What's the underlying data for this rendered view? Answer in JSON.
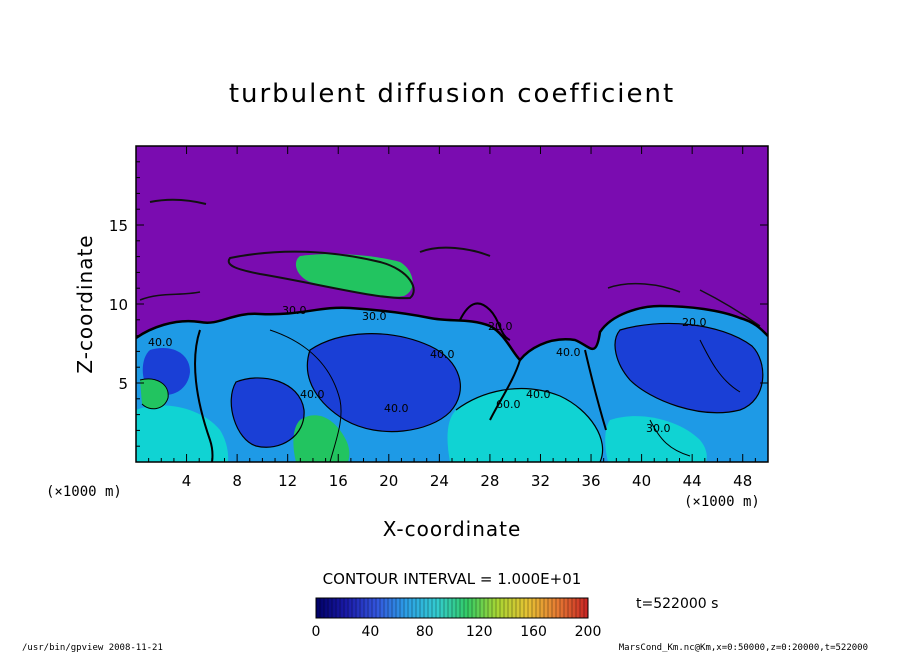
{
  "chart_data": {
    "type": "heatmap",
    "title": "turbulent diffusion coefficient",
    "xlabel": "X-coordinate",
    "ylabel": "Z-coordinate",
    "x_unit": "(×1000 m)",
    "y_unit": "(×1000 m)",
    "x_ticks": [
      "4",
      "8",
      "12",
      "16",
      "20",
      "24",
      "28",
      "32",
      "36",
      "40",
      "44",
      "48"
    ],
    "y_ticks": [
      "5",
      "10",
      "15"
    ],
    "xlim": [
      0,
      50
    ],
    "ylim": [
      0,
      20
    ],
    "contour_interval": "CONTOUR INTERVAL = 1.000E+01",
    "time_label": "t=522000 s",
    "colorbar": {
      "min": 0,
      "max": 200,
      "ticks": [
        "0",
        "40",
        "80",
        "120",
        "160",
        "200"
      ],
      "colors": [
        "#000066",
        "#1a1aa8",
        "#3355dd",
        "#2ca0e6",
        "#33ccd0",
        "#33cc66",
        "#a8d633",
        "#e6c233",
        "#e67a33",
        "#c82424"
      ]
    },
    "field_colors": {
      "background": "#7a0cb0",
      "low": "#1a3fd6",
      "mid": "#1e9ae6",
      "cyan": "#10d3d3",
      "green": "#22c460"
    },
    "contour_labels": [
      "40.0",
      "30.0",
      "30.0",
      "40.0",
      "40.0",
      "20.0",
      "40.0",
      "40.0",
      "60.0",
      "40.0",
      "20.0",
      "30.0"
    ]
  },
  "footer": {
    "left": "/usr/bin/gpview  2008-11-21",
    "right": "MarsCond_Km.nc@Km,x=0:50000,z=0:20000,t=522000"
  }
}
